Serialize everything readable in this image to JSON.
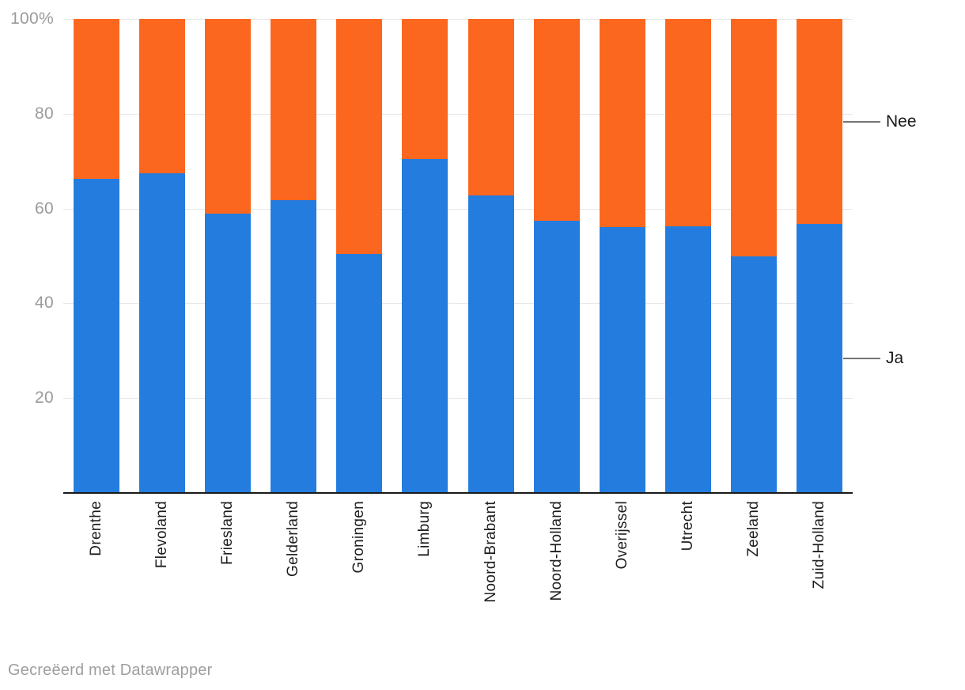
{
  "chart_data": {
    "type": "bar",
    "stacked": true,
    "orientation": "vertical",
    "unit": "%",
    "title": "",
    "xlabel": "",
    "ylabel": "",
    "categories": [
      "Drenthe",
      "Flevoland",
      "Friesland",
      "Gelderland",
      "Groningen",
      "Limburg",
      "Noord-Brabant",
      "Noord-Holland",
      "Overijssel",
      "Utrecht",
      "Zeeland",
      "Zuid-Holland"
    ],
    "series": [
      {
        "name": "Ja",
        "color": "#247cdf",
        "values": [
          66.3,
          67.5,
          59.0,
          61.8,
          50.4,
          70.5,
          62.7,
          57.5,
          56.1,
          56.3,
          50.0,
          56.7
        ]
      },
      {
        "name": "Nee",
        "color": "#fc6720",
        "values": [
          33.7,
          32.5,
          41.0,
          38.2,
          49.6,
          29.5,
          37.3,
          42.5,
          43.9,
          43.7,
          50.0,
          43.3
        ]
      }
    ],
    "y_axis": {
      "min": 0,
      "max": 100,
      "grid": true,
      "ticks": [
        20,
        40,
        60,
        80,
        100
      ],
      "tick_labels": [
        "20",
        "40",
        "60",
        "80",
        "100%"
      ]
    },
    "legend": {
      "position": "right",
      "entries": [
        {
          "label": "Nee",
          "series": "Nee"
        },
        {
          "label": "Ja",
          "series": "Ja"
        }
      ]
    }
  },
  "colors": {
    "ja": "#247cdf",
    "nee": "#fc6720",
    "grid": "#e8e8e8",
    "axis": "#1a1a1a",
    "tick_label": "#9a9a9a",
    "category_label": "#1d1d1d",
    "legend_label": "#191919",
    "legend_line": "#757575",
    "footer": "#9e9e9e",
    "background": "#ffffff"
  },
  "footer": {
    "credit": "Gecreëerd met Datawrapper"
  }
}
